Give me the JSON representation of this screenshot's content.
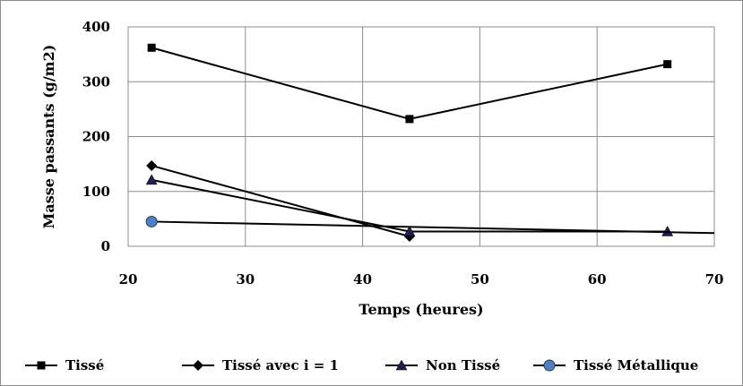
{
  "chart_data": {
    "type": "line",
    "title": "",
    "xlabel": "Temps (heures)",
    "ylabel": "Masse passants (g/m2)",
    "xlim": [
      20,
      70
    ],
    "ylim": [
      0,
      400
    ],
    "x_ticks": [
      20,
      30,
      40,
      50,
      60,
      70
    ],
    "y_ticks": [
      0,
      100,
      200,
      300,
      400
    ],
    "grid": true,
    "legend_position": "bottom",
    "series": [
      {
        "name": "Tissé",
        "marker": "square",
        "color": "#000000",
        "x": [
          22,
          44,
          66
        ],
        "y": [
          362,
          232,
          332
        ]
      },
      {
        "name": "Tissé avec i = 1",
        "marker": "diamond",
        "color": "#000000",
        "x": [
          22,
          44
        ],
        "y": [
          147,
          18
        ]
      },
      {
        "name": "Non Tissé",
        "marker": "triangle",
        "color": "#1f1f4f",
        "x": [
          22,
          44,
          66
        ],
        "y": [
          121,
          27,
          27
        ]
      },
      {
        "name": "Tissé Métallique",
        "marker": "circle",
        "color": "#4f81bd",
        "x": [
          22,
          70
        ],
        "y": [
          45,
          24
        ]
      }
    ]
  }
}
